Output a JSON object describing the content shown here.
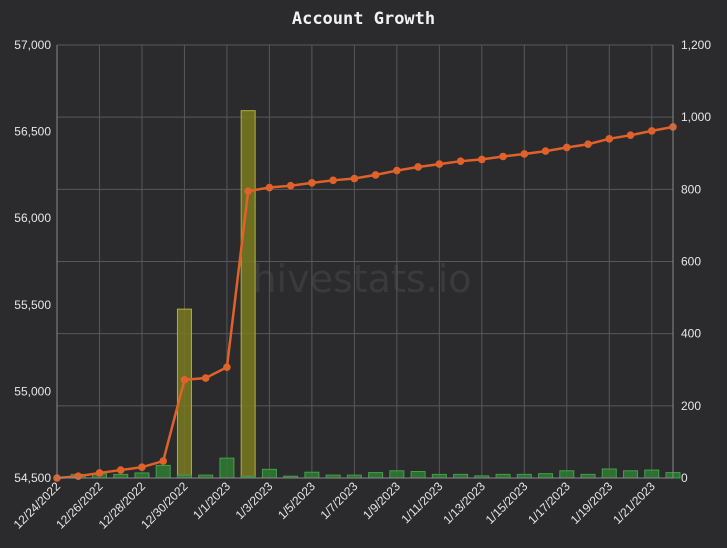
{
  "chart_data": {
    "title": "Account Growth",
    "watermark": "hivestats.io",
    "type": "bar+line",
    "x_dates": [
      "12/24/2022",
      "12/25/2022",
      "12/26/2022",
      "12/27/2022",
      "12/28/2022",
      "12/29/2022",
      "12/30/2022",
      "12/31/2022",
      "1/1/2023",
      "1/2/2023",
      "1/3/2023",
      "1/4/2023",
      "1/5/2023",
      "1/6/2023",
      "1/7/2023",
      "1/8/2023",
      "1/9/2023",
      "1/10/2023",
      "1/11/2023",
      "1/12/2023",
      "1/13/2023",
      "1/14/2023",
      "1/15/2023",
      "1/16/2023",
      "1/17/2023",
      "1/18/2023",
      "1/19/2023",
      "1/20/2023",
      "1/21/2023",
      "1/22/2023"
    ],
    "x_tick_labels": [
      "12/24/2022",
      "12/26/2022",
      "12/28/2022",
      "12/30/2022",
      "1/1/2023",
      "1/3/2023",
      "1/5/2023",
      "1/7/2023",
      "1/9/2023",
      "1/11/2023",
      "1/13/2023",
      "1/15/2023",
      "1/17/2023",
      "1/19/2023",
      "1/21/2023"
    ],
    "left_axis": {
      "ylim": [
        54500,
        57000
      ],
      "ticks": [
        "54,500",
        "55,000",
        "55,500",
        "56,000",
        "56,500",
        "57,000"
      ]
    },
    "right_axis": {
      "ylim": [
        0,
        1200
      ],
      "ticks": [
        "0",
        "200",
        "400",
        "600",
        "800",
        "1,000",
        "1,200"
      ]
    },
    "grid": true,
    "series": [
      {
        "kind": "bar",
        "axis": "right",
        "color": "#7a7a1e",
        "edge": "#b0b040",
        "values": [
          0,
          0,
          0,
          0,
          0,
          0,
          468,
          0,
          0,
          1018,
          0,
          0,
          0,
          0,
          0,
          0,
          0,
          0,
          0,
          0,
          0,
          0,
          0,
          0,
          0,
          0,
          0,
          0,
          0,
          0
        ]
      },
      {
        "kind": "bar",
        "axis": "right",
        "color": "#2e7d32",
        "edge": "#43a047",
        "values": [
          0,
          10,
          12,
          10,
          14,
          35,
          8,
          8,
          55,
          5,
          24,
          5,
          16,
          8,
          8,
          15,
          20,
          18,
          10,
          10,
          6,
          10,
          10,
          12,
          20,
          10,
          25,
          20,
          22,
          15
        ]
      },
      {
        "kind": "bar",
        "axis": "right",
        "color": "#8a6a20",
        "edge": "#a0802a",
        "values": [
          0,
          0,
          0,
          0,
          0,
          0,
          0,
          0,
          0,
          0,
          0,
          0,
          0,
          0,
          0,
          0,
          0,
          0,
          0,
          0,
          0,
          0,
          0,
          0,
          0,
          0,
          0,
          0,
          0,
          0
        ]
      },
      {
        "kind": "line",
        "axis": "right",
        "color": "#e0622a",
        "values": [
          0,
          5,
          14,
          22,
          30,
          47,
          272,
          277,
          307,
          795,
          805,
          810,
          818,
          825,
          830,
          840,
          852,
          862,
          870,
          878,
          883,
          891,
          898,
          906,
          916,
          925,
          940,
          950,
          962,
          973
        ]
      }
    ]
  }
}
